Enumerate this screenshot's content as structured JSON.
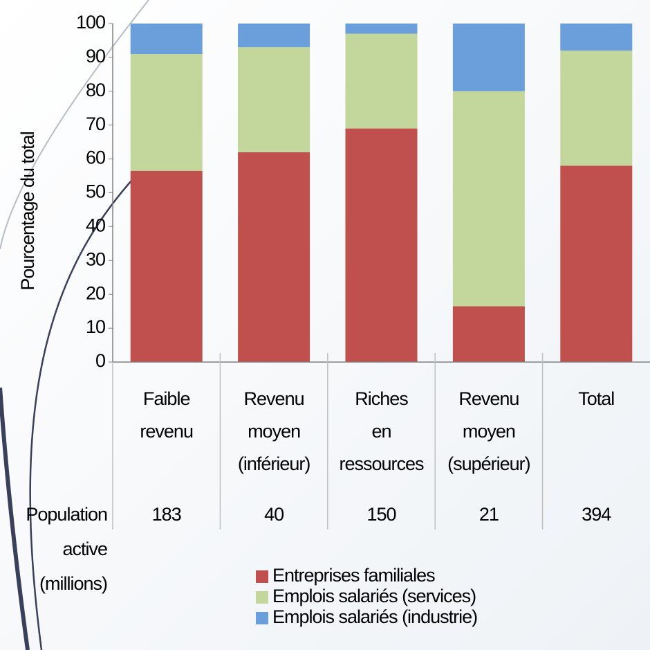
{
  "chart_data": {
    "type": "stacked_bar",
    "y_label": "Pourcentage du total",
    "categories": [
      "Faible\nrevenu",
      "Revenu\nmoyen\n(inférieur)",
      "Riches\nen\nressources",
      "Revenu\nmoyen\n(supérieur)",
      "Total"
    ],
    "series": [
      {
        "name": "Entreprises familiales",
        "color": "#c0504d",
        "values": [
          56.5,
          62,
          69,
          16.5,
          58
        ]
      },
      {
        "name": "Emplois salariés (services)",
        "color": "#c3d69b",
        "values": [
          34.5,
          31,
          28,
          63.5,
          34
        ]
      },
      {
        "name": "Emplois salariés (industrie)",
        "color": "#6a9fdb",
        "values": [
          9,
          7,
          3,
          20,
          8
        ]
      }
    ],
    "ylim": [
      0,
      100
    ],
    "yticks": [
      0,
      10,
      20,
      30,
      40,
      50,
      60,
      70,
      80,
      90,
      100
    ],
    "population_label": "Population\nactive\n(millions)",
    "population": [
      183,
      40,
      150,
      21,
      394
    ]
  }
}
